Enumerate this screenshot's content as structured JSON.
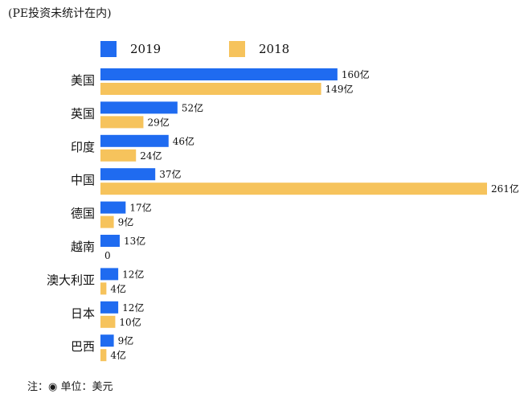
{
  "subtitle": "(PE投资未统计在内)",
  "note": "注：◉ 单位：美元",
  "chart_data": {
    "type": "bar",
    "orientation": "horizontal",
    "categories": [
      "美国",
      "英国",
      "印度",
      "中国",
      "德国",
      "越南",
      "澳大利亚",
      "日本",
      "巴西"
    ],
    "series": [
      {
        "name": "2019",
        "color": "#1f6bf0",
        "values": [
          160,
          52,
          46,
          37,
          17,
          13,
          12,
          12,
          9
        ],
        "labels": [
          "160亿",
          "52亿",
          "46亿",
          "37亿",
          "17亿",
          "13亿",
          "12亿",
          "12亿",
          "9亿"
        ]
      },
      {
        "name": "2018",
        "color": "#f6c35c",
        "values": [
          149,
          29,
          24,
          261,
          9,
          0,
          4,
          10,
          4
        ],
        "labels": [
          "149亿",
          "29亿",
          "24亿",
          "261亿",
          "9亿",
          "0",
          "4亿",
          "10亿",
          "4亿"
        ]
      }
    ],
    "legend": "top",
    "grid": false
  }
}
